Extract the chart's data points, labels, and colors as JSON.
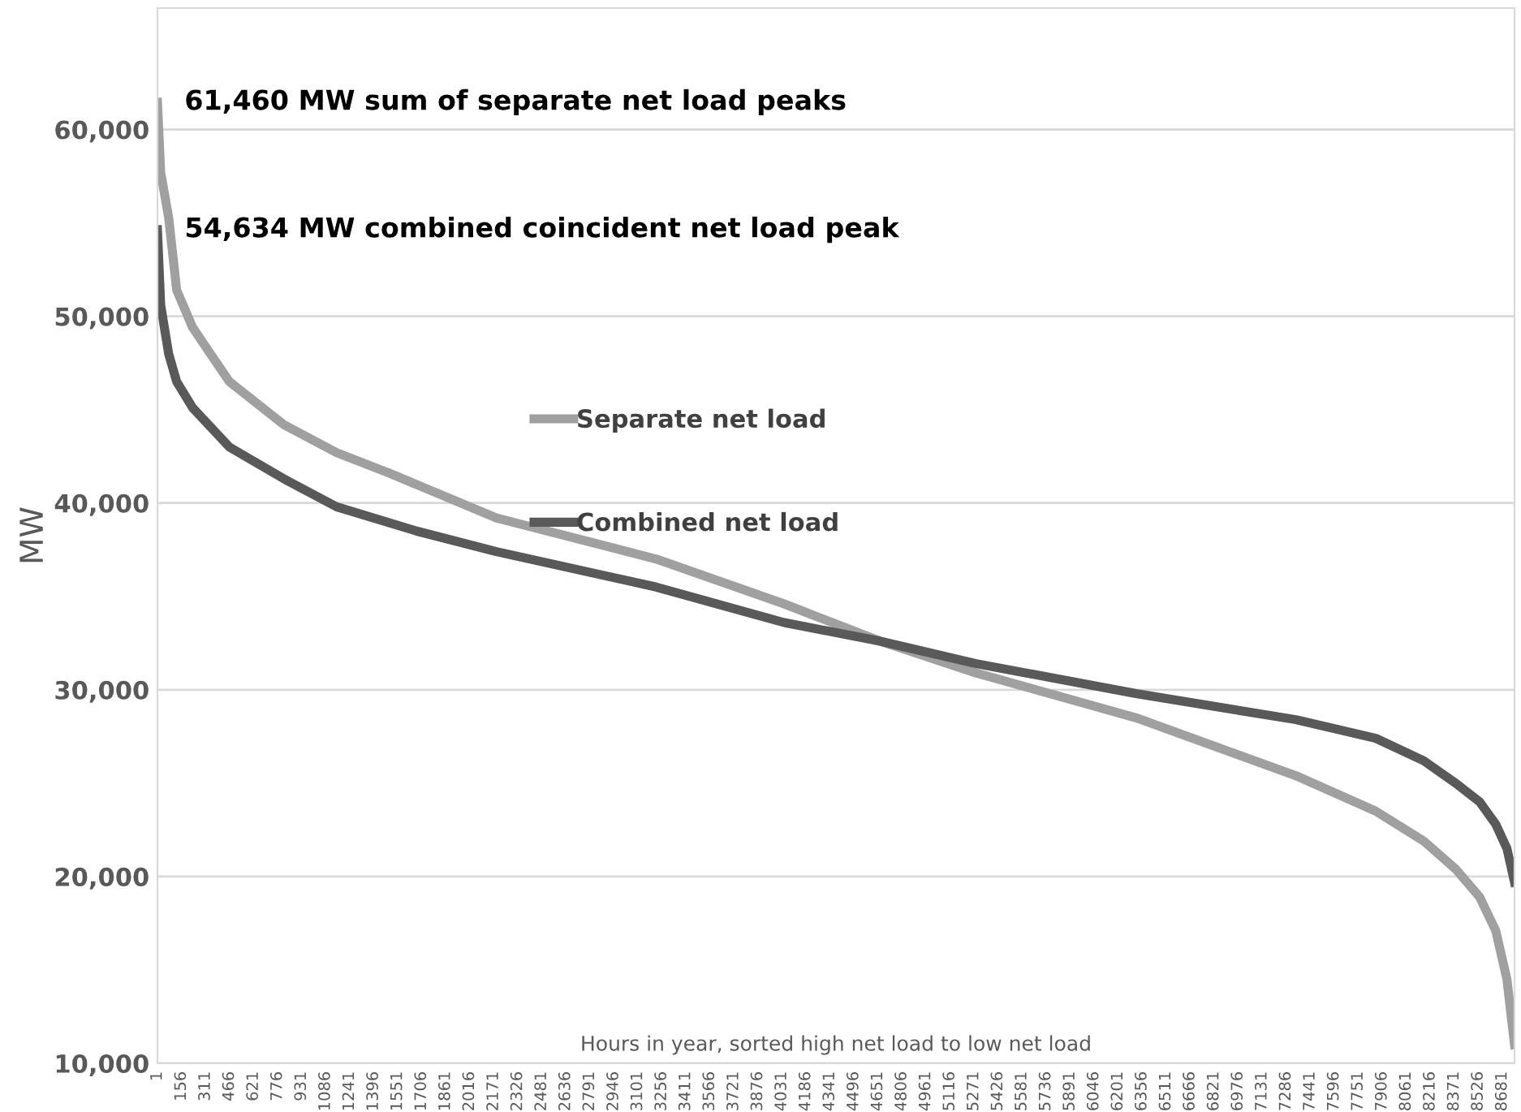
{
  "chart_data": {
    "type": "line",
    "ylabel": "MW",
    "xlabel": "Hours in year, sorted high net load to low net load",
    "annotations": [
      {
        "text": "61,460 MW sum of separate net load peaks",
        "x": 1,
        "y": 61460
      },
      {
        "text": "54,634 MW combined coincident net load peak",
        "x": 1,
        "y": 54634
      }
    ],
    "series": [
      {
        "name": "Separate net load",
        "color": "#a0a0a0",
        "x": [
          1,
          22,
          73,
          125,
          228,
          465,
          816,
          1157,
          1497,
          2189,
          3221,
          4046,
          4666,
          5285,
          6317,
          7349,
          7865,
          8174,
          8380,
          8535,
          8639,
          8711,
          8760
        ],
        "values": [
          61460,
          57700,
          55300,
          51400,
          49400,
          46500,
          44200,
          42700,
          41600,
          39200,
          37000,
          34600,
          32600,
          30900,
          28500,
          25400,
          23500,
          21900,
          20400,
          18900,
          17100,
          14500,
          11000
        ]
      },
      {
        "name": "Combined net load",
        "color": "#595959",
        "x": [
          1,
          22,
          73,
          125,
          228,
          465,
          816,
          1157,
          1673,
          2189,
          3221,
          4046,
          4666,
          5285,
          6317,
          7349,
          7865,
          8174,
          8380,
          8535,
          8639,
          8711,
          8760
        ],
        "values": [
          54634,
          50600,
          48000,
          46500,
          45100,
          43000,
          41300,
          39800,
          38500,
          37400,
          35500,
          33600,
          32600,
          31400,
          29800,
          28400,
          27400,
          26200,
          25000,
          24000,
          22800,
          21500,
          19700
        ]
      }
    ],
    "xlim": [
      1,
      8760
    ],
    "xticks": [
      1,
      156,
      311,
      466,
      621,
      776,
      931,
      1086,
      1241,
      1396,
      1551,
      1706,
      1861,
      2016,
      2171,
      2326,
      2481,
      2636,
      2791,
      2946,
      3101,
      3256,
      3411,
      3566,
      3721,
      3876,
      4031,
      4186,
      4341,
      4496,
      4651,
      4806,
      4961,
      5116,
      5271,
      5426,
      5581,
      5736,
      5891,
      6046,
      6201,
      6356,
      6511,
      6666,
      6821,
      6976,
      7131,
      7286,
      7441,
      7596,
      7751,
      7906,
      8061,
      8216,
      8371,
      8526,
      8681
    ],
    "ylim": [
      10000,
      66500
    ],
    "yticks": [
      {
        "value": 10000,
        "label": "10,000"
      },
      {
        "value": 20000,
        "label": "20,000"
      },
      {
        "value": 30000,
        "label": "30,000"
      },
      {
        "value": 40000,
        "label": "40,000"
      },
      {
        "value": 50000,
        "label": "50,000"
      },
      {
        "value": 60000,
        "label": "60,000"
      }
    ],
    "grid": "y",
    "legend": "center",
    "marker": "none",
    "line_style": "solid"
  }
}
